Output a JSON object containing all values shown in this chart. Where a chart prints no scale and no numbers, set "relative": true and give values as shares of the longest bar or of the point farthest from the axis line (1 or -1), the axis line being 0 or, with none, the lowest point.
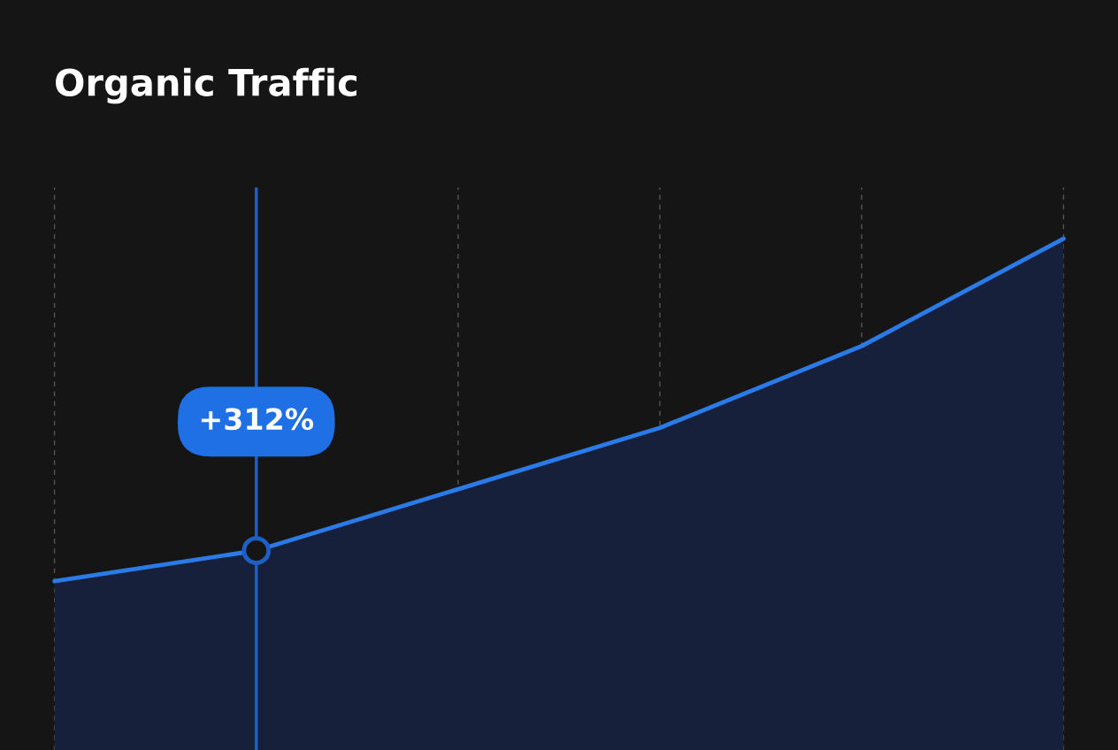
{
  "chart_data": {
    "type": "area",
    "title": "Organic Traffic",
    "relative": true,
    "categories": [
      null,
      null,
      null,
      null,
      null,
      null
    ],
    "series": [
      {
        "color": "#2a7ae8",
        "values": [
          0.33,
          0.39,
          0.51,
          0.63,
          0.79,
          1
        ]
      }
    ],
    "annotations": [
      "+312%"
    ],
    "grid": "x",
    "legend": false,
    "marker": "none",
    "line_style": "solid"
  }
}
